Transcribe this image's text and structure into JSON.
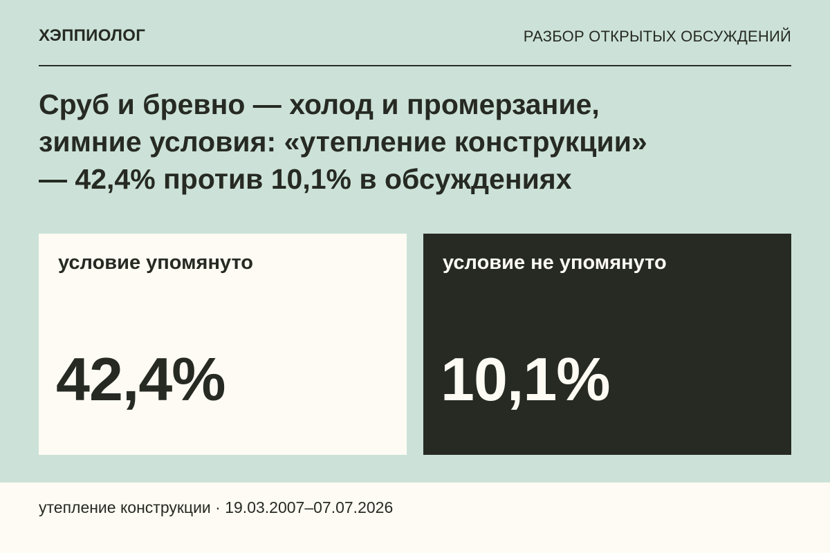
{
  "header": {
    "brand": "ХЭППИОЛОГ",
    "section": "РАЗБОР ОТКРЫТЫХ ОБСУЖДЕНИЙ"
  },
  "headline": {
    "line1": "Сруб и бревно — холод и промерзание,",
    "line2": "зимние условия: «утепление конструкции»",
    "line3": "— 42,4% против 10,1% в обсуждениях"
  },
  "cards": [
    {
      "label": "условие упомянуто",
      "value": "42,4%",
      "background": "#fdfbf3",
      "text_color": "#262a23"
    },
    {
      "label": "условие не упомянуто",
      "value": "10,1%",
      "background": "#262a23",
      "text_color": "#fdfbf3"
    }
  ],
  "footer": {
    "text": "утепление конструкции · 19.03.2007–07.07.2026"
  },
  "colors": {
    "page_background": "#cce2d8",
    "ink": "#262a23",
    "paper": "#fdfbf3"
  }
}
